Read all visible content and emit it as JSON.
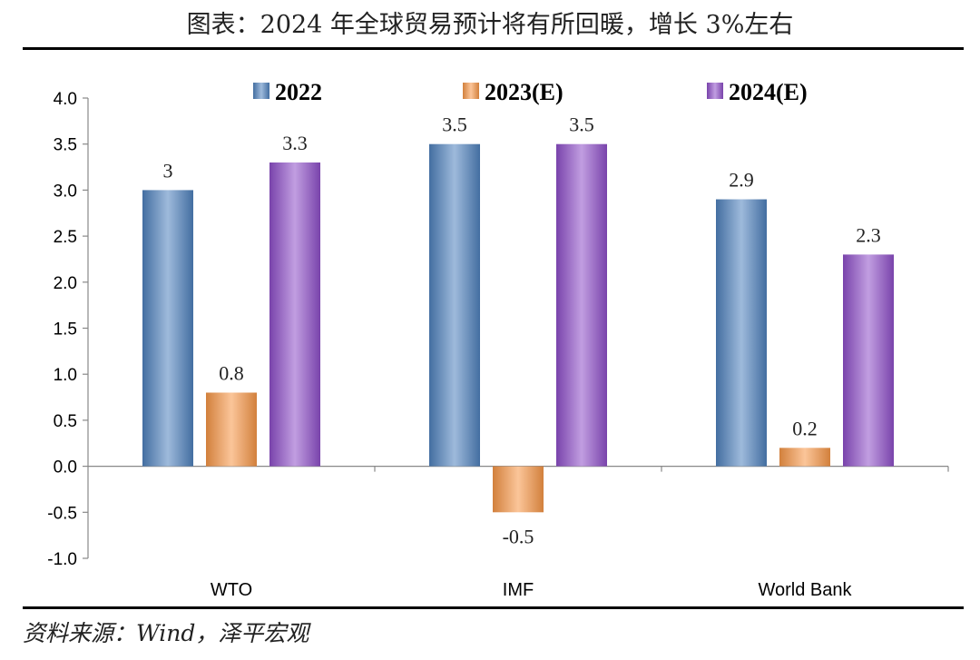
{
  "header": {
    "title": "图表：2024 年全球贸易预计将有所回暖，增长 3%左右"
  },
  "footer": {
    "source": "资料来源：Wind，泽平宏观"
  },
  "colors": {
    "series_2022": "#4f81bd",
    "series_2023": "#f79646",
    "series_2024": "#8e4fc9"
  },
  "chart_data": {
    "type": "bar",
    "categories": [
      "WTO",
      "IMF",
      "World Bank"
    ],
    "series": [
      {
        "name": "2022",
        "values": [
          3.0,
          3.5,
          2.9
        ],
        "labels": [
          "3",
          "3.5",
          "2.9"
        ]
      },
      {
        "name": "2023(E)",
        "values": [
          0.8,
          -0.5,
          0.2
        ],
        "labels": [
          "0.8",
          "-0.5",
          "0.2"
        ]
      },
      {
        "name": "2024(E)",
        "values": [
          3.3,
          3.5,
          2.3
        ],
        "labels": [
          "3.3",
          "3.5",
          "2.3"
        ]
      }
    ],
    "ylim": [
      -1.0,
      4.0
    ],
    "yticks": [
      "4.0",
      "3.5",
      "3.0",
      "2.5",
      "2.0",
      "1.5",
      "1.0",
      "0.5",
      "0.0",
      "-0.5",
      "-1.0"
    ],
    "legend_position": "top",
    "grid": false
  }
}
